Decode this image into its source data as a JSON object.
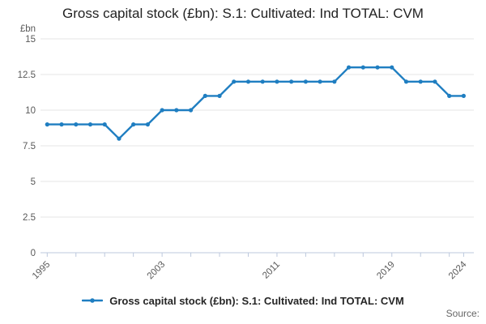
{
  "title": "Gross capital stock (£bn): S.1: Cultivated: Ind TOTAL: CVM",
  "y_axis_unit": "£bn",
  "legend_label": "Gross capital stock (£bn): S.1: Cultivated: Ind TOTAL: CVM",
  "source_label": "Source:",
  "colors": {
    "line": "#1f7ec1",
    "grid": "#e6e6e6",
    "axis": "#bcc8dd",
    "tick_text": "#595959",
    "title_text": "#222222"
  },
  "chart_data": {
    "type": "line",
    "title": "Gross capital stock (£bn): S.1: Cultivated: Ind TOTAL: CVM",
    "xlabel": "",
    "ylabel": "£bn",
    "ylim": [
      0,
      15
    ],
    "y_ticks": [
      0,
      2.5,
      5,
      7.5,
      10,
      12.5,
      15
    ],
    "x_ticks": [
      1995,
      1997,
      1999,
      2001,
      2003,
      2005,
      2007,
      2009,
      2011,
      2013,
      2015,
      2017,
      2019,
      2021,
      2023,
      2024
    ],
    "x_tick_labels": [
      1995,
      2003,
      2011,
      2019,
      2024
    ],
    "grid": true,
    "legend_position": "bottom",
    "x": [
      1995,
      1996,
      1997,
      1998,
      1999,
      2000,
      2001,
      2002,
      2003,
      2004,
      2005,
      2006,
      2007,
      2008,
      2009,
      2010,
      2011,
      2012,
      2013,
      2014,
      2015,
      2016,
      2017,
      2018,
      2019,
      2020,
      2021,
      2022,
      2023,
      2024
    ],
    "values": [
      9,
      9,
      9,
      9,
      9,
      8,
      9,
      9,
      10,
      10,
      10,
      11,
      11,
      12,
      12,
      12,
      12,
      12,
      12,
      12,
      12,
      13,
      13,
      13,
      13,
      12,
      12,
      12,
      11,
      11
    ]
  }
}
